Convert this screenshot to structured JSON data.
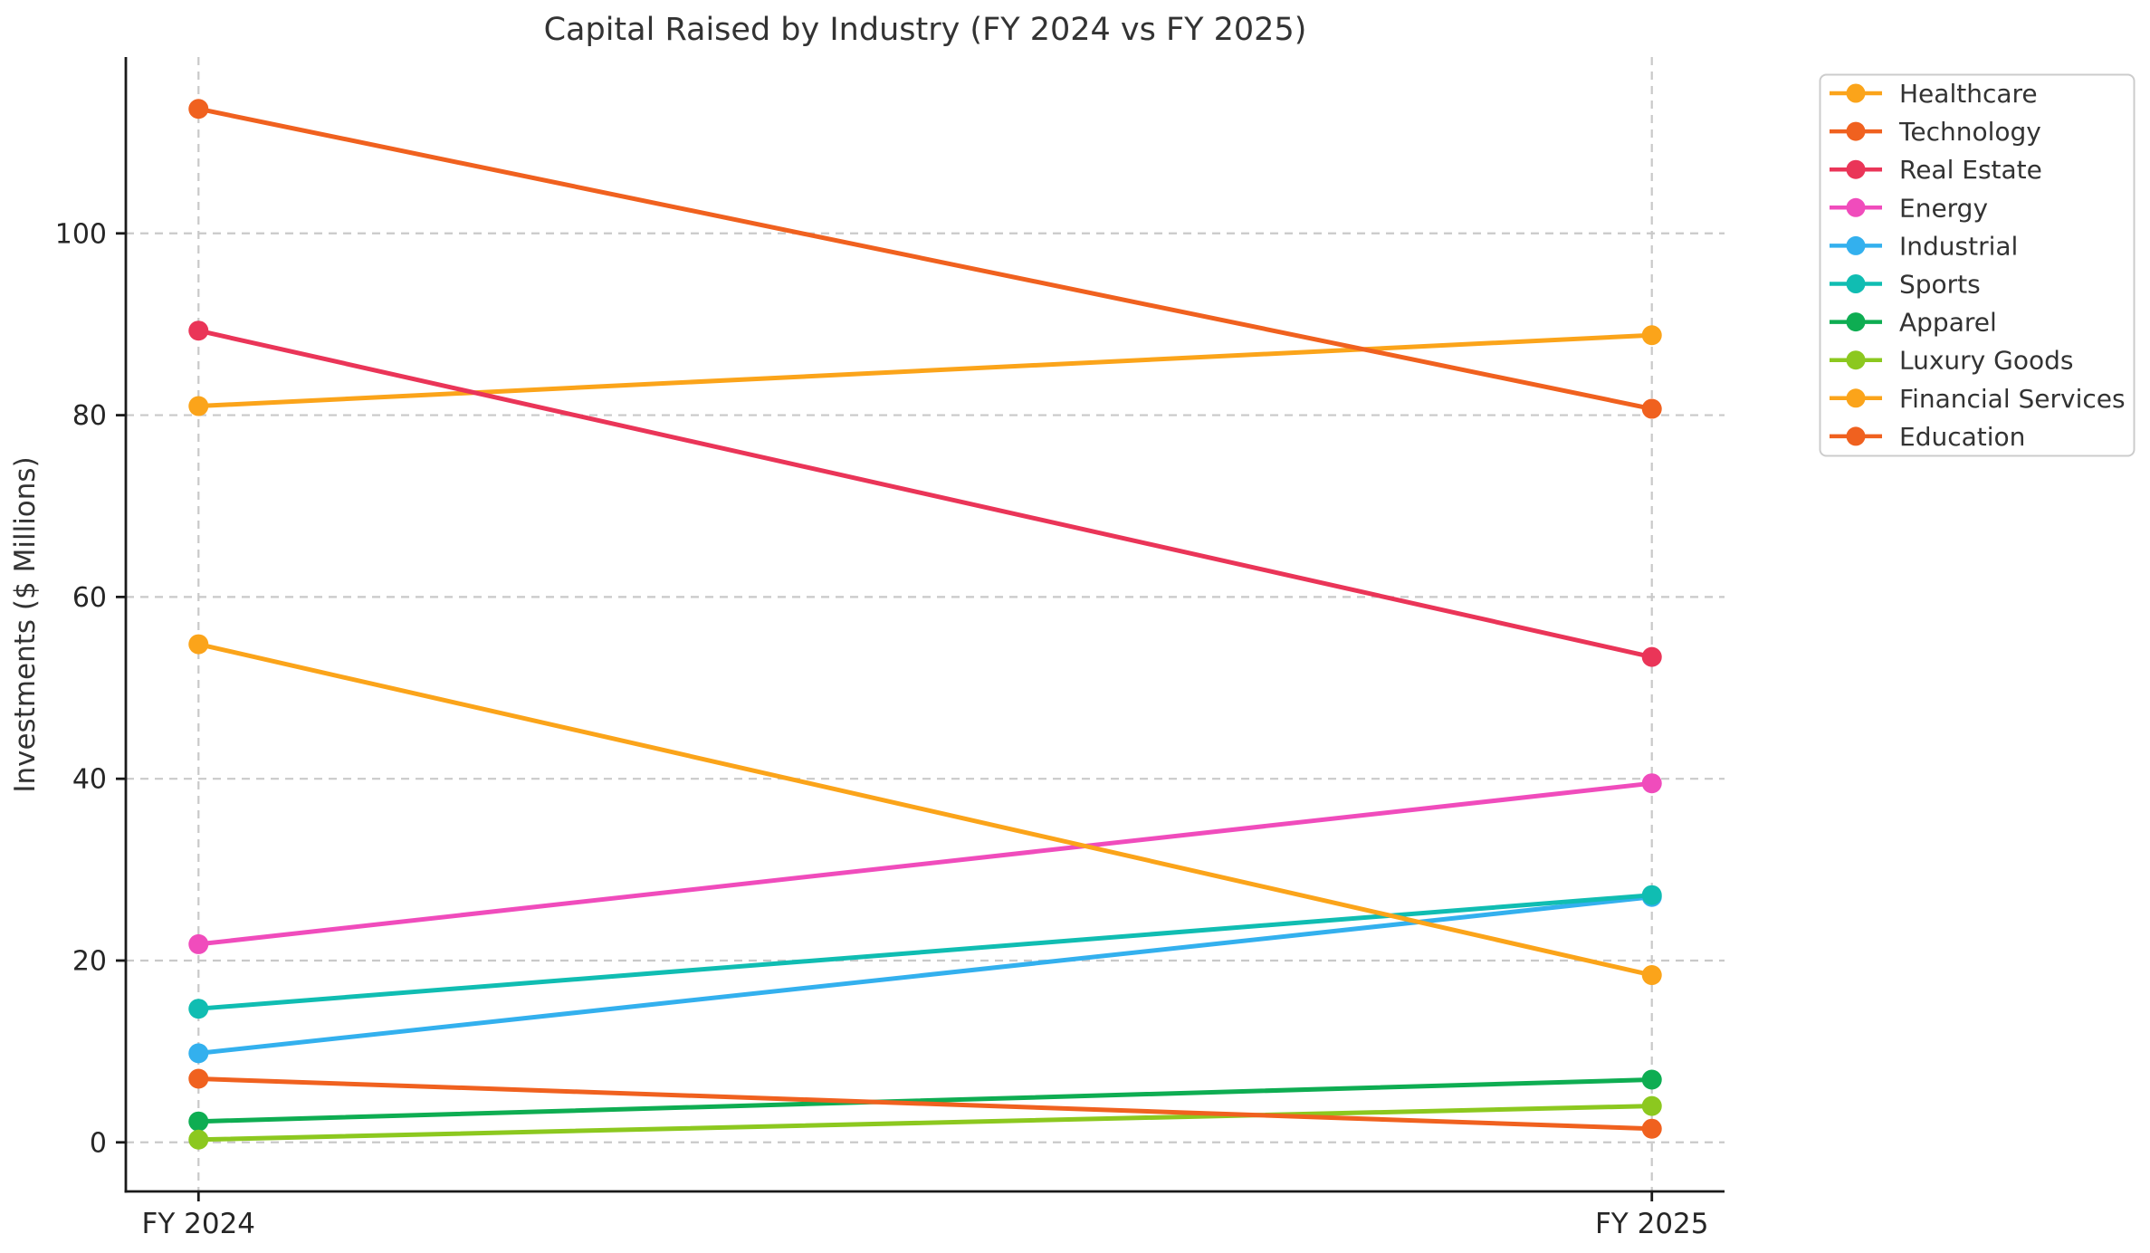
{
  "title": "Capital Raised by Industry (FY 2024 vs FY 2025)",
  "y_axis_label": "Investments ($ Millions)",
  "chart_data": {
    "type": "line",
    "subtype": "slope-chart",
    "categories": [
      "FY 2024",
      "FY 2025"
    ],
    "series": [
      {
        "name": "Healthcare",
        "color": "#FBA41A",
        "values": [
          81.0,
          88.8
        ]
      },
      {
        "name": "Technology",
        "color": "#F0611F",
        "values": [
          113.7,
          80.7
        ]
      },
      {
        "name": "Real Estate",
        "color": "#EA3558",
        "values": [
          89.3,
          53.4
        ]
      },
      {
        "name": "Energy",
        "color": "#F04CBC",
        "values": [
          21.8,
          39.5
        ]
      },
      {
        "name": "Industrial",
        "color": "#33B0EE",
        "values": [
          9.8,
          27.0
        ]
      },
      {
        "name": "Sports",
        "color": "#10BDB2",
        "values": [
          14.7,
          27.2
        ]
      },
      {
        "name": "Apparel",
        "color": "#0EAD52",
        "values": [
          2.3,
          6.9
        ]
      },
      {
        "name": "Luxury Goods",
        "color": "#8CC81F",
        "values": [
          0.3,
          4.0
        ]
      },
      {
        "name": "Financial Services",
        "color": "#FBA41A",
        "values": [
          54.8,
          18.4
        ]
      },
      {
        "name": "Education",
        "color": "#F0611F",
        "values": [
          7.0,
          1.5
        ]
      }
    ],
    "yticks": [
      0,
      20,
      40,
      60,
      80,
      100
    ],
    "ylim": [
      -5.4,
      119.4
    ],
    "grid": true,
    "grid_style": "dashed",
    "grid_color": "#c9c9c9",
    "axis_color": "#1a1a1a",
    "text_color": "#333333",
    "legend_position": "outside-upper-right",
    "marker": "circle",
    "line_width": 5
  }
}
